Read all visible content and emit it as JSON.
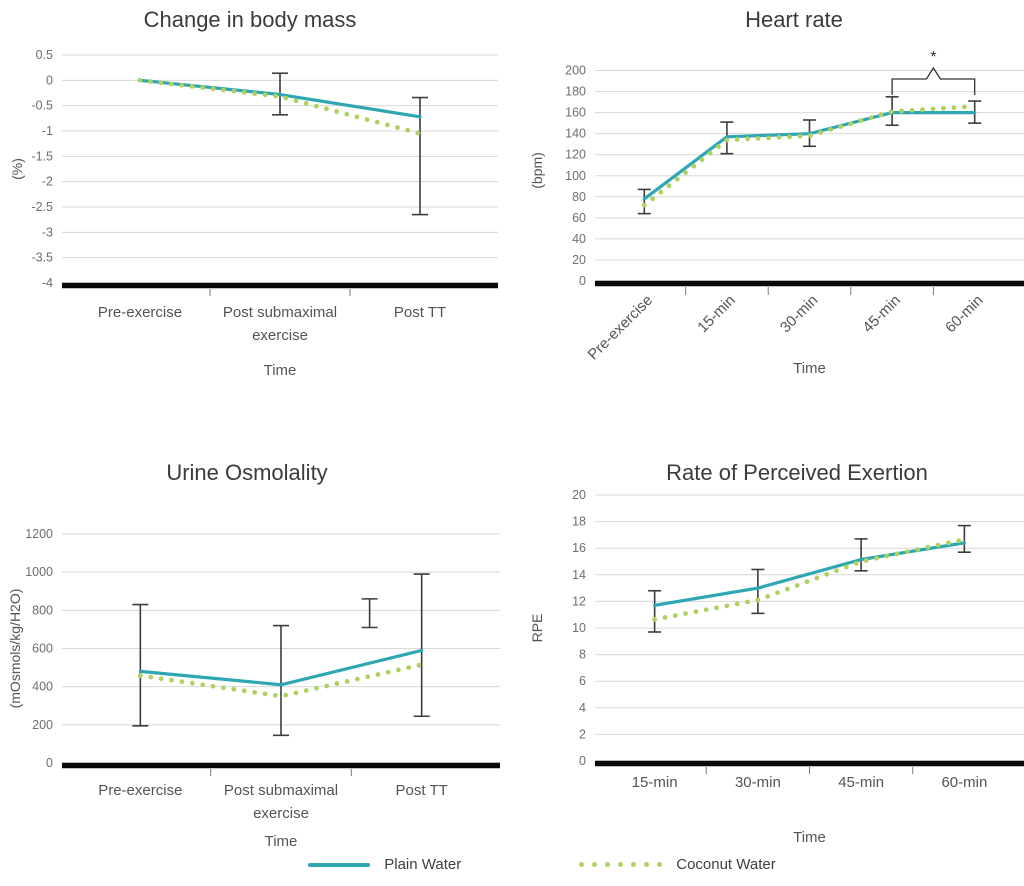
{
  "palette": {
    "plain_water": "#2EA7B3",
    "coconut_water": "#AFD162",
    "error_bar": "#3C3C3C",
    "grid": "#D8D8D8",
    "axis": "#0A0A0A",
    "tick_text": "#6E6E6E",
    "label_text": "#545454",
    "title_text": "#3B3B3B"
  },
  "legend": {
    "items": [
      {
        "label": "Plain Water",
        "style": "solid",
        "color": "#2EA7B3"
      },
      {
        "label": "Coconut Water",
        "style": "dotted",
        "color": "#AFD162"
      }
    ]
  },
  "chart_data": [
    {
      "id": "change-in-body-mass",
      "type": "line",
      "title": "Change in body mass",
      "ylabel": "(%)",
      "xlabel": "Time",
      "categories": [
        "Pre-exercise",
        "Post submaximal\nexercise",
        "Post TT"
      ],
      "ylim": [
        -4,
        0.5
      ],
      "yticks": [
        0.5,
        0,
        -0.5,
        -1,
        -1.5,
        -2,
        -2.5,
        -3,
        -3.5,
        -4
      ],
      "grid": true,
      "legend_position": "bottom",
      "series": [
        {
          "name": "Plain Water",
          "style": "solid",
          "values": [
            0,
            -0.28,
            -0.72
          ]
        },
        {
          "name": "Coconut Water",
          "style": "dotted",
          "values": [
            0,
            -0.32,
            -1.05
          ]
        }
      ],
      "error_bars": [
        {
          "x": 1,
          "low": -0.68,
          "high": 0.14
        },
        {
          "x": 2,
          "low": -2.65,
          "high": -0.34
        }
      ]
    },
    {
      "id": "heart-rate",
      "type": "line",
      "title": "Heart rate",
      "ylabel": "(bpm)",
      "xlabel": "Time",
      "categories": [
        "Pre-exercise",
        "15-min",
        "30-min",
        "45-min",
        "60-min"
      ],
      "rotated_xticks": true,
      "ylim": [
        0,
        210
      ],
      "yticks": [
        0,
        20,
        40,
        60,
        80,
        100,
        120,
        140,
        160,
        180,
        200
      ],
      "grid": true,
      "series": [
        {
          "name": "Plain Water",
          "style": "solid",
          "values": [
            78,
            137,
            140,
            160,
            160
          ]
        },
        {
          "name": "Coconut Water",
          "style": "dotted",
          "values": [
            72,
            134,
            138,
            161,
            166
          ]
        }
      ],
      "error_bars": [
        {
          "x": 0,
          "low": 64,
          "high": 87
        },
        {
          "x": 1,
          "low": 121,
          "high": 151
        },
        {
          "x": 2,
          "low": 128,
          "high": 153
        },
        {
          "x": 3,
          "low": 148,
          "high": 175
        },
        {
          "x": 4,
          "low": 150,
          "high": 171
        }
      ],
      "annotation": {
        "type": "significance-bracket",
        "label": "*",
        "from_index": 3,
        "to_index": 4
      }
    },
    {
      "id": "urine-osmolality",
      "type": "line",
      "title": "Urine Osmolality",
      "ylabel": "(mOsmols/kg/H2O)",
      "xlabel": "Time",
      "categories": [
        "Pre-exercise",
        "Post submaximal\nexercise",
        "Post TT"
      ],
      "ylim": [
        0,
        1200
      ],
      "yticks": [
        0,
        200,
        400,
        600,
        800,
        1000,
        1200
      ],
      "grid": true,
      "series": [
        {
          "name": "Plain Water",
          "style": "solid",
          "values": [
            480,
            410,
            590
          ]
        },
        {
          "name": "Coconut Water",
          "style": "dotted",
          "values": [
            458,
            350,
            515
          ]
        }
      ],
      "error_bars": [
        {
          "x": 0,
          "low": 195,
          "high": 830
        },
        {
          "x": 1,
          "low": 145,
          "high": 720
        },
        {
          "x": 1.63,
          "low": 710,
          "high": 860
        },
        {
          "x": 2,
          "low": 245,
          "high": 990
        }
      ]
    },
    {
      "id": "rate-of-perceived-exertion",
      "type": "line",
      "title": "Rate of Perceived Exertion",
      "ylabel": "RPE",
      "xlabel": "Time",
      "categories": [
        "15-min",
        "30-min",
        "45-min",
        "60-min"
      ],
      "ylim": [
        0,
        20
      ],
      "yticks": [
        0,
        2,
        4,
        6,
        8,
        10,
        12,
        14,
        16,
        18,
        20
      ],
      "grid": true,
      "series": [
        {
          "name": "Plain Water",
          "style": "solid",
          "values": [
            11.7,
            13.0,
            15.15,
            16.4
          ]
        },
        {
          "name": "Coconut Water",
          "style": "dotted",
          "values": [
            10.65,
            12.1,
            15.0,
            16.65
          ]
        }
      ],
      "error_bars": [
        {
          "x": 0,
          "low": 9.7,
          "high": 12.8
        },
        {
          "x": 1,
          "low": 11.1,
          "high": 14.4
        },
        {
          "x": 2,
          "low": 14.3,
          "high": 16.7
        },
        {
          "x": 3,
          "low": 15.7,
          "high": 17.7
        }
      ]
    }
  ]
}
